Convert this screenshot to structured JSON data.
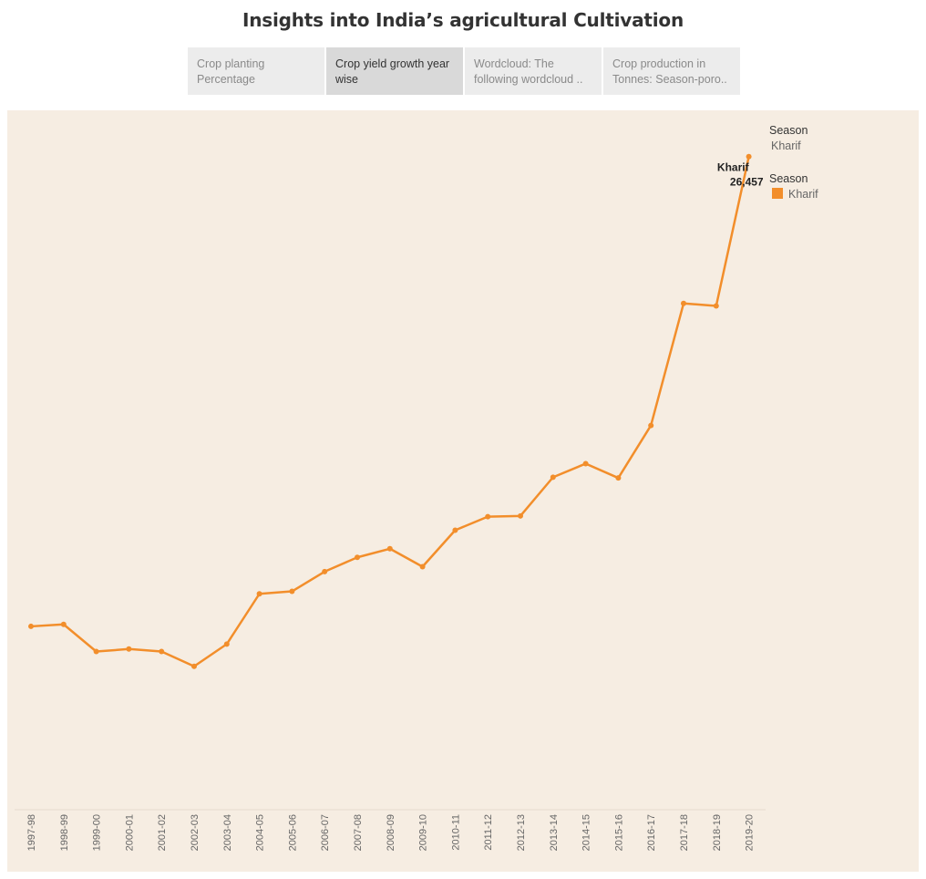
{
  "title": "Insights into India’s agricultural Cultivation",
  "tabs": [
    {
      "label": "Crop planting Percentage"
    },
    {
      "label": "Crop yield growth year wise"
    },
    {
      "label": "Wordcloud: The following wordcloud .."
    },
    {
      "label": "Crop production in Tonnes: Season-poro.."
    }
  ],
  "active_tab": 1,
  "legend": {
    "filter_title": "Season",
    "filter_value": "Kharif",
    "color_title": "Season",
    "color_item": "Kharif"
  },
  "colors": {
    "series": "#f28e2b",
    "panel_bg": "#f6ede2"
  },
  "chart_data": {
    "type": "line",
    "x": [
      "1997-98",
      "1998-99",
      "1999-00",
      "2000-01",
      "2001-02",
      "2002-03",
      "2003-04",
      "2004-05",
      "2005-06",
      "2006-07",
      "2007-08",
      "2008-09",
      "2009-10",
      "2010-11",
      "2011-12",
      "2012-13",
      "2013-14",
      "2014-15",
      "2015-16",
      "2016-17",
      "2017-18",
      "2018-19",
      "2019-20"
    ],
    "series": [
      {
        "name": "Kharif",
        "values": [
          7400,
          7480,
          6380,
          6480,
          6380,
          5780,
          6680,
          8720,
          8820,
          9620,
          10200,
          10550,
          9820,
          11300,
          11850,
          11880,
          13450,
          14000,
          13420,
          15550,
          20500,
          20400,
          26457
        ]
      }
    ],
    "annotation": {
      "label": "Kharif",
      "value": "26,457"
    },
    "ylim": [
      0,
      28000
    ],
    "grid": false,
    "legend_position": "right"
  }
}
